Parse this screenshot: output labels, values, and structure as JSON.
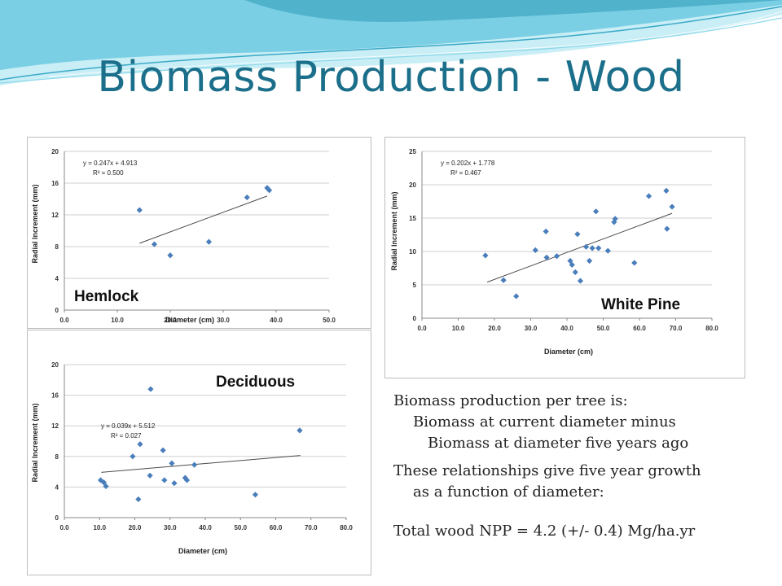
{
  "slide": {
    "title": "Biomass Production - Wood",
    "colors": {
      "title": "#1b6f8a",
      "wave_light": "#c9eef6",
      "wave_mid": "#5cc3dc",
      "wave_dark": "#2f9ab8",
      "marker": "#4a7ebb"
    }
  },
  "labels": {
    "hemlock": "Hemlock",
    "white_pine": "White Pine",
    "deciduous": "Deciduous"
  },
  "text": {
    "line1": "Biomass production per tree is:",
    "line2": "Biomass at current diameter minus",
    "line3": "Biomass at diameter five years ago",
    "line4": "These relationships give five year growth",
    "line5": "as a function of diameter:",
    "line6": "Total wood NPP =  4.2 (+/- 0.4) Mg/ha.yr"
  },
  "chart_data": [
    {
      "type": "scatter",
      "xlabel": "Diameter (cm)",
      "ylabel": "Radial Increment (mm)",
      "xlim": [
        0,
        50
      ],
      "ylim": [
        0,
        20
      ],
      "xticks": [
        "0.0",
        "10.0",
        "20.0",
        "30.0",
        "40.0",
        "50.0"
      ],
      "yticks": [
        "0",
        "4",
        "8",
        "12",
        "16",
        "20"
      ],
      "equation": "y = 0.247x + 4.913",
      "r2": "R² = 0.500",
      "trend": {
        "slope": 0.247,
        "intercept": 4.913,
        "x_range": [
          14.2,
          38.3
        ]
      },
      "grid": true,
      "points": [
        {
          "x": 14.2,
          "y": 12.6
        },
        {
          "x": 17.0,
          "y": 8.3
        },
        {
          "x": 20.0,
          "y": 6.9
        },
        {
          "x": 27.3,
          "y": 8.6
        },
        {
          "x": 34.5,
          "y": 14.2
        },
        {
          "x": 38.3,
          "y": 15.4
        },
        {
          "x": 38.7,
          "y": 15.1
        }
      ]
    },
    {
      "type": "scatter",
      "xlabel": "Diameter (cm)",
      "ylabel": "Radial Increment (mm)",
      "xlim": [
        0,
        80
      ],
      "ylim": [
        0,
        25
      ],
      "xticks": [
        "0.0",
        "10.0",
        "20.0",
        "30.0",
        "40.0",
        "50.0",
        "60.0",
        "70.0",
        "80.0"
      ],
      "yticks": [
        "0",
        "5",
        "10",
        "15",
        "20",
        "25"
      ],
      "equation": "y = 0.202x + 1.778",
      "r2": "R² = 0.467",
      "trend": {
        "slope": 0.202,
        "intercept": 1.778,
        "x_range": [
          18,
          69
        ]
      },
      "grid": true,
      "points": [
        {
          "x": 17.5,
          "y": 9.4
        },
        {
          "x": 22.5,
          "y": 5.7
        },
        {
          "x": 26.0,
          "y": 3.3
        },
        {
          "x": 31.3,
          "y": 10.2
        },
        {
          "x": 34.2,
          "y": 13.0
        },
        {
          "x": 34.4,
          "y": 9.1
        },
        {
          "x": 37.2,
          "y": 9.3
        },
        {
          "x": 40.9,
          "y": 8.6
        },
        {
          "x": 41.4,
          "y": 8.0
        },
        {
          "x": 42.3,
          "y": 6.9
        },
        {
          "x": 42.9,
          "y": 12.6
        },
        {
          "x": 43.7,
          "y": 5.6
        },
        {
          "x": 45.3,
          "y": 10.7
        },
        {
          "x": 46.2,
          "y": 8.6
        },
        {
          "x": 47.0,
          "y": 10.5
        },
        {
          "x": 48.0,
          "y": 16.0
        },
        {
          "x": 48.7,
          "y": 10.5
        },
        {
          "x": 51.3,
          "y": 10.1
        },
        {
          "x": 53.0,
          "y": 14.4
        },
        {
          "x": 53.3,
          "y": 14.9
        },
        {
          "x": 58.6,
          "y": 8.3
        },
        {
          "x": 62.6,
          "y": 18.3
        },
        {
          "x": 67.4,
          "y": 19.1
        },
        {
          "x": 67.6,
          "y": 13.4
        },
        {
          "x": 69.0,
          "y": 16.7
        }
      ]
    },
    {
      "type": "scatter",
      "xlabel": "Diameter (cm)",
      "ylabel": "Radial Increment (mm)",
      "xlim": [
        0,
        80
      ],
      "ylim": [
        0,
        20
      ],
      "xticks": [
        "0.0",
        "10.0",
        "20.0",
        "30.0",
        "40.0",
        "50.0",
        "60.0",
        "70.0",
        "80.0"
      ],
      "yticks": [
        "0",
        "4",
        "8",
        "12",
        "16",
        "20"
      ],
      "equation": "y = 0.039x + 5.512",
      "r2": "R² = 0.027",
      "trend": {
        "slope": 0.039,
        "intercept": 5.512,
        "x_range": [
          10.5,
          67
        ]
      },
      "grid": true,
      "points": [
        {
          "x": 10.3,
          "y": 4.9
        },
        {
          "x": 11.2,
          "y": 4.6
        },
        {
          "x": 11.8,
          "y": 4.1
        },
        {
          "x": 19.4,
          "y": 8.0
        },
        {
          "x": 21.0,
          "y": 2.4
        },
        {
          "x": 21.5,
          "y": 9.6
        },
        {
          "x": 24.3,
          "y": 5.5
        },
        {
          "x": 24.5,
          "y": 16.8
        },
        {
          "x": 28.0,
          "y": 8.8
        },
        {
          "x": 28.4,
          "y": 4.9
        },
        {
          "x": 30.5,
          "y": 7.1
        },
        {
          "x": 31.2,
          "y": 4.5
        },
        {
          "x": 34.3,
          "y": 5.2
        },
        {
          "x": 34.8,
          "y": 4.9
        },
        {
          "x": 36.9,
          "y": 6.9
        },
        {
          "x": 54.2,
          "y": 3.0
        },
        {
          "x": 66.8,
          "y": 11.4
        }
      ]
    }
  ]
}
